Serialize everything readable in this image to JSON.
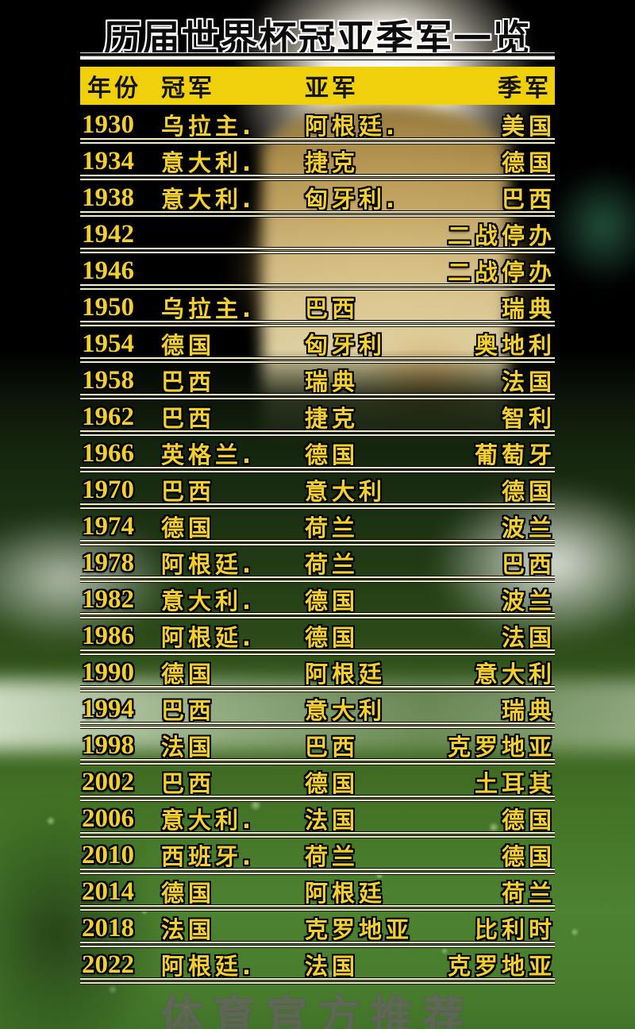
{
  "title": "历届世界杯冠亚季军一览",
  "watermark": "体育官方推荐",
  "table": {
    "headers": {
      "year": "年份",
      "champion": "冠军",
      "runner_up": "亚军",
      "third": "季军"
    },
    "rows": [
      {
        "year": "1930",
        "champion": "乌拉主.",
        "runner_up": "阿根廷.",
        "third": "美国"
      },
      {
        "year": "1934",
        "champion": "意大利.",
        "runner_up": "捷克",
        "third": "德国"
      },
      {
        "year": "1938",
        "champion": "意大利.",
        "runner_up": "匈牙利.",
        "third": "巴西"
      },
      {
        "year": "1942",
        "champion": "",
        "runner_up": "",
        "third": "二战停办"
      },
      {
        "year": "1946",
        "champion": "",
        "runner_up": "",
        "third": "二战停办"
      },
      {
        "year": "1950",
        "champion": "乌拉主.",
        "runner_up": "巴西",
        "third": "瑞典"
      },
      {
        "year": "1954",
        "champion": "德国",
        "runner_up": "匈牙利",
        "third": "奥地利"
      },
      {
        "year": "1958",
        "champion": "巴西",
        "runner_up": "瑞典",
        "third": "法国"
      },
      {
        "year": "1962",
        "champion": "巴西",
        "runner_up": "捷克",
        "third": "智利"
      },
      {
        "year": "1966",
        "champion": "英格兰.",
        "runner_up": "德国",
        "third": "葡萄牙"
      },
      {
        "year": "1970",
        "champion": "巴西",
        "runner_up": "意大利",
        "third": "德国"
      },
      {
        "year": "1974",
        "champion": "德国",
        "runner_up": "荷兰",
        "third": "波兰"
      },
      {
        "year": "1978",
        "champion": "阿根廷.",
        "runner_up": "荷兰",
        "third": "巴西"
      },
      {
        "year": "1982",
        "champion": "意大利.",
        "runner_up": "德国",
        "third": "波兰"
      },
      {
        "year": "1986",
        "champion": "阿根延.",
        "runner_up": "德国",
        "third": "法国"
      },
      {
        "year": "1990",
        "champion": "德国",
        "runner_up": "阿根廷",
        "third": "意大利"
      },
      {
        "year": "1994",
        "champion": "巴西",
        "runner_up": "意大利",
        "third": "瑞典"
      },
      {
        "year": "1998",
        "champion": "法国",
        "runner_up": "巴西",
        "third": "克罗地亚"
      },
      {
        "year": "2002",
        "champion": "巴西",
        "runner_up": "德国",
        "third": "土耳其"
      },
      {
        "year": "2006",
        "champion": "意大利.",
        "runner_up": "法国",
        "third": "德国"
      },
      {
        "year": "2010",
        "champion": "西班牙.",
        "runner_up": "荷兰",
        "third": "德国"
      },
      {
        "year": "2014",
        "champion": "德国",
        "runner_up": "阿根廷",
        "third": "荷兰"
      },
      {
        "year": "2018",
        "champion": "法国",
        "runner_up": "克罗地亚",
        "third": "比利时"
      },
      {
        "year": "2022",
        "champion": "阿根廷.",
        "runner_up": "法国",
        "third": "克罗地亚"
      }
    ]
  },
  "colors": {
    "text_yellow": "#f2cf2e",
    "header_bg": "#f0d00a",
    "outline_black": "#000000",
    "title_fill": "#0c0c0c",
    "title_outline": "#ffffff",
    "grass_green": "#4c8230",
    "trophy_gold": "#d9c288"
  }
}
